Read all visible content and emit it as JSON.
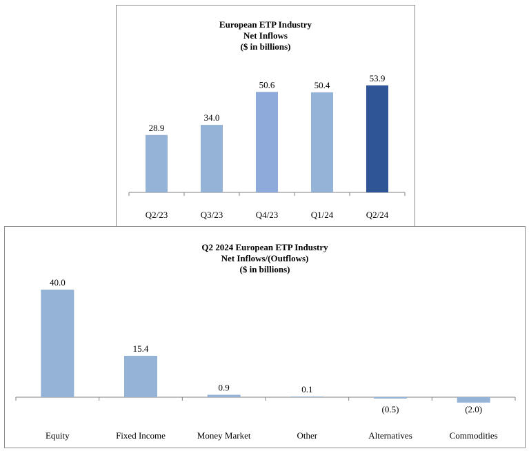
{
  "chart_data": [
    {
      "type": "bar",
      "title": [
        "European ETP Industry",
        "Net Inflows",
        "($ in billions)"
      ],
      "categories": [
        "Q2/23",
        "Q3/23",
        "Q4/23",
        "Q1/24",
        "Q2/24"
      ],
      "values": [
        28.9,
        34.0,
        50.6,
        50.4,
        53.9
      ],
      "value_labels": [
        "28.9",
        "34.0",
        "50.6",
        "50.4",
        "53.9"
      ],
      "bar_colors": [
        "#95b3d7",
        "#95b3d7",
        "#8eaadb",
        "#95b3d7",
        "#2f5597"
      ],
      "xlabel": "",
      "ylabel": "",
      "ylim": [
        0,
        60
      ]
    },
    {
      "type": "bar",
      "title": [
        "Q2 2024 European ETP Industry",
        "Net Inflows/(Outflows)",
        "($ in billions)"
      ],
      "categories": [
        "Equity",
        "Fixed Income",
        "Money Market",
        "Other",
        "Alternatives",
        "Commodities"
      ],
      "values": [
        40.0,
        15.4,
        0.9,
        0.1,
        -0.5,
        -2.0
      ],
      "value_labels": [
        "40.0",
        "15.4",
        "0.9",
        "0.1",
        "(0.5)",
        "(2.0)"
      ],
      "bar_colors": [
        "#95b3d7",
        "#95b3d7",
        "#95b3d7",
        "#95b3d7",
        "#95b3d7",
        "#95b3d7"
      ],
      "xlabel": "",
      "ylabel": "",
      "ylim": [
        -2.5,
        45
      ]
    }
  ],
  "colors": {
    "axis": "#808080",
    "panel_border": "#8c8c8c"
  }
}
